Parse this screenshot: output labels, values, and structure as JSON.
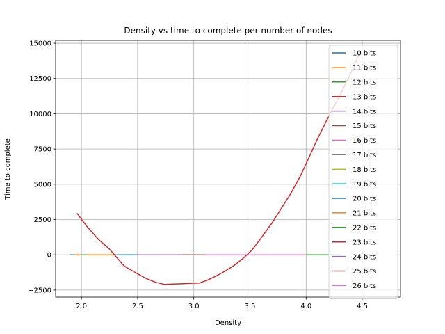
{
  "chart_data": {
    "type": "line",
    "title": "Density vs time to complete per number of nodes",
    "xlabel": "Density",
    "ylabel": "Time to complete",
    "xlim": [
      1.77,
      4.84
    ],
    "ylim": [
      -3000,
      15200
    ],
    "xticks": [
      2.0,
      2.5,
      3.0,
      3.5,
      4.0,
      4.5
    ],
    "yticks": [
      -2500,
      0,
      2500,
      5000,
      7500,
      10000,
      12500,
      15000
    ],
    "xtick_labels": [
      "2.0",
      "2.5",
      "3.0",
      "3.5",
      "4.0",
      "4.5"
    ],
    "ytick_labels": [
      "−2500",
      "0",
      "2500",
      "5000",
      "7500",
      "10000",
      "12500",
      "15000"
    ],
    "grid": true,
    "legend_position": "upper-right",
    "series": [
      {
        "name": "10 bits",
        "color": "#1f77b4",
        "x": [
          1.9,
          2.02
        ],
        "y": [
          0,
          0
        ]
      },
      {
        "name": "11 bits",
        "color": "#ff7f0e",
        "x": [
          1.94,
          2.12
        ],
        "y": [
          0,
          0
        ]
      },
      {
        "name": "12 bits",
        "color": "#2ca02c",
        "x": [
          2.0,
          2.2
        ],
        "y": [
          0,
          0
        ]
      },
      {
        "name": "13 bits",
        "color": "#d62728",
        "x": [
          2.1,
          4.3
        ],
        "y": [
          0,
          0
        ]
      },
      {
        "name": "14 bits",
        "color": "#9467bd",
        "x": [
          2.2,
          4.0
        ],
        "y": [
          0,
          0
        ]
      },
      {
        "name": "15 bits",
        "color": "#8c564b",
        "x": [
          3.8,
          4.1
        ],
        "y": [
          0,
          0
        ]
      },
      {
        "name": "16 bits",
        "color": "#e377c2",
        "x": [
          2.5,
          3.5
        ],
        "y": [
          0,
          0
        ]
      },
      {
        "name": "17 bits",
        "color": "#7f7f7f",
        "x": [
          3.0,
          4.0
        ],
        "y": [
          0,
          0
        ]
      },
      {
        "name": "18 bits",
        "color": "#bcbd22",
        "x": [
          2.4,
          3.3
        ],
        "y": [
          0,
          0
        ]
      },
      {
        "name": "19 bits",
        "color": "#17becf",
        "x": [
          2.6,
          3.6
        ],
        "y": [
          0,
          0
        ]
      },
      {
        "name": "20 bits",
        "color": "#1f77b4",
        "x": [
          2.3,
          3.9
        ],
        "y": [
          0,
          0
        ]
      },
      {
        "name": "21 bits",
        "color": "#ff7f0e",
        "x": [
          2.05,
          2.3
        ],
        "y": [
          0,
          0
        ]
      },
      {
        "name": "22 bits",
        "color": "#2ca02c",
        "x": [
          3.9,
          4.3
        ],
        "y": [
          0,
          0
        ]
      },
      {
        "name": "23 bits",
        "color": "#d62728",
        "x": [
          1.96,
          2.05,
          2.15,
          2.25,
          2.38,
          2.5,
          2.58,
          2.66,
          2.74,
          2.82,
          2.9,
          2.98,
          3.05,
          3.12,
          3.2,
          3.28,
          3.36,
          3.44,
          3.52,
          3.6,
          3.7,
          3.78,
          3.86,
          3.95,
          4.02,
          4.1,
          4.2,
          4.3,
          4.4,
          4.48
        ],
        "y": [
          2950,
          2000,
          1100,
          400,
          -800,
          -1350,
          -1700,
          -1950,
          -2100,
          -2080,
          -2050,
          -2020,
          -2000,
          -1800,
          -1500,
          -1150,
          -750,
          -250,
          350,
          1200,
          2300,
          3300,
          4300,
          5600,
          6800,
          8200,
          9800,
          11300,
          12900,
          14400
        ]
      },
      {
        "name": "24 bits",
        "color": "#9467bd",
        "x": [
          2.5,
          3.4
        ],
        "y": [
          0,
          0
        ]
      },
      {
        "name": "25 bits",
        "color": "#8c564b",
        "x": [
          2.9,
          3.9
        ],
        "y": [
          0,
          0
        ]
      },
      {
        "name": "26 bits",
        "color": "#e377c2",
        "x": [
          3.1,
          4.0
        ],
        "y": [
          0,
          0
        ]
      }
    ]
  }
}
